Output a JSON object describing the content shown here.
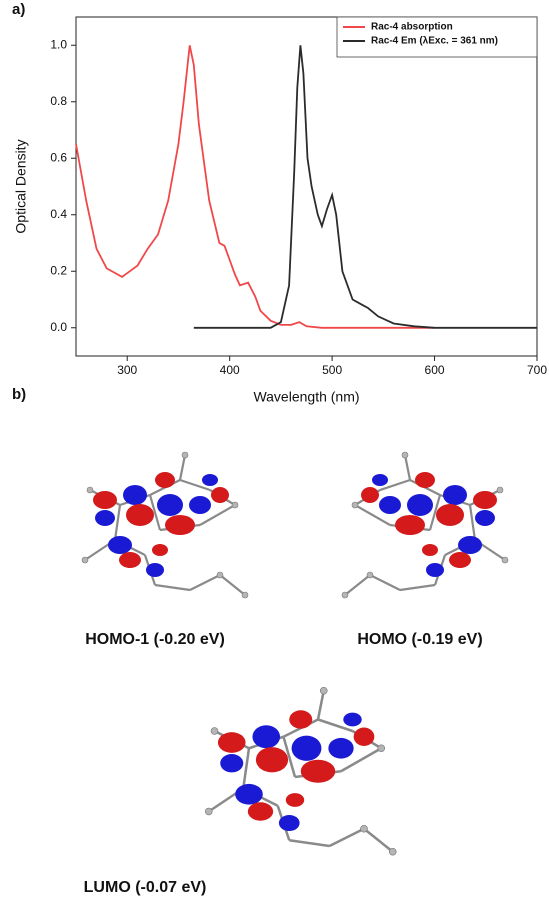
{
  "chart_data": {
    "type": "line",
    "panel_label": "a)",
    "xlabel": "Wavelength (nm)",
    "ylabel": "Optical Density",
    "xlim": [
      250,
      700
    ],
    "ylim": [
      -0.1,
      1.1
    ],
    "xticks": [
      300,
      400,
      500,
      600,
      700
    ],
    "yticks": [
      {
        "value": 0,
        "label": "0.0"
      },
      0.2,
      0.4,
      0.6,
      0.8,
      {
        "value": 1,
        "label": "1.0"
      }
    ],
    "legend": "upper right",
    "series": [
      {
        "name": "Rac-4 absorption",
        "color": "#f0484a",
        "x": [
          250,
          260,
          270,
          280,
          295,
          310,
          320,
          330,
          340,
          350,
          355,
          361,
          365,
          370,
          380,
          390,
          395,
          400,
          405,
          410,
          418,
          425,
          430,
          440,
          450,
          460,
          468,
          475,
          490,
          600
        ],
        "values": [
          0.65,
          0.45,
          0.28,
          0.21,
          0.18,
          0.22,
          0.28,
          0.33,
          0.45,
          0.65,
          0.8,
          1.0,
          0.93,
          0.72,
          0.45,
          0.3,
          0.29,
          0.24,
          0.19,
          0.15,
          0.16,
          0.11,
          0.06,
          0.025,
          0.01,
          0.01,
          0.02,
          0.005,
          0.0,
          0.0
        ]
      },
      {
        "name": "Rac-4 Em (λExc. = 361 nm)",
        "color": "#2b2b2b",
        "x": [
          365,
          440,
          450,
          458,
          463,
          466,
          469,
          472,
          476,
          480,
          486,
          490,
          495,
          500,
          504,
          510,
          520,
          530,
          535,
          545,
          560,
          580,
          600,
          700
        ],
        "values": [
          0.0,
          0.0,
          0.02,
          0.15,
          0.55,
          0.85,
          1.0,
          0.9,
          0.6,
          0.5,
          0.4,
          0.36,
          0.42,
          0.47,
          0.4,
          0.2,
          0.1,
          0.08,
          0.07,
          0.04,
          0.015,
          0.005,
          0.0,
          0.0
        ]
      }
    ]
  },
  "panel_b": {
    "label": "b)",
    "orbitals": [
      {
        "label": "HOMO-1 (-0.20 eV)"
      },
      {
        "label": "HOMO (-0.19 eV)"
      },
      {
        "label": "LUMO (-0.07 eV)"
      }
    ]
  }
}
